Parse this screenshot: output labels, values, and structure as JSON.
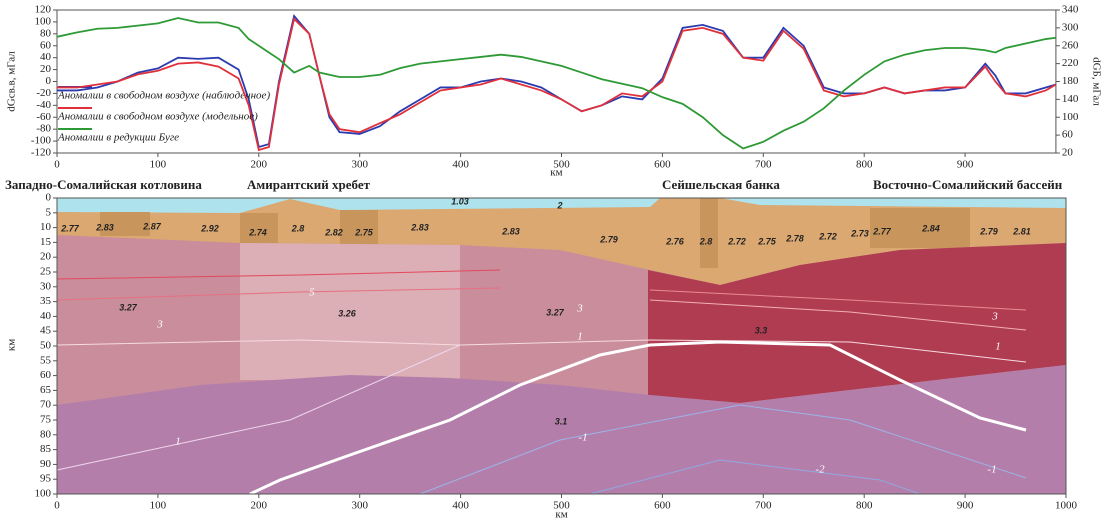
{
  "chart_data": [
    {
      "type": "line",
      "ylabel": "dGсв.в, мГал",
      "y2label": "dGБ, мГал",
      "xlabel": "км",
      "x": [
        0,
        20,
        40,
        60,
        80,
        100,
        120,
        140,
        160,
        180,
        190,
        200,
        210,
        220,
        235,
        250,
        260,
        270,
        280,
        300,
        320,
        340,
        360,
        380,
        400,
        420,
        440,
        460,
        480,
        500,
        520,
        540,
        560,
        580,
        600,
        620,
        640,
        660,
        680,
        700,
        720,
        740,
        760,
        780,
        800,
        820,
        840,
        860,
        880,
        900,
        920,
        930,
        940,
        960,
        980,
        990
      ],
      "series": [
        {
          "name": "Аномалии в свободном воздухе (наблюденное)",
          "color": "#2b3bb0",
          "values": [
            -15,
            -15,
            -10,
            0,
            15,
            22,
            40,
            38,
            40,
            20,
            -30,
            -110,
            -105,
            0,
            110,
            80,
            10,
            -60,
            -85,
            -88,
            -75,
            -50,
            -30,
            -10,
            -10,
            0,
            5,
            0,
            -10,
            -30,
            -50,
            -40,
            -25,
            -30,
            5,
            90,
            95,
            85,
            40,
            40,
            90,
            60,
            -10,
            -20,
            -20,
            -10,
            -20,
            -15,
            -15,
            -10,
            30,
            10,
            -20,
            -20,
            -10,
            -5
          ]
        },
        {
          "name": "Аномалии в свободном воздухе (модельное)",
          "color": "#e0303a",
          "values": [
            -10,
            -10,
            -5,
            0,
            12,
            18,
            30,
            32,
            25,
            5,
            -40,
            -115,
            -110,
            -5,
            105,
            80,
            10,
            -55,
            -80,
            -85,
            -70,
            -55,
            -35,
            -15,
            -10,
            -5,
            5,
            -5,
            -15,
            -30,
            -50,
            -40,
            -20,
            -25,
            0,
            85,
            90,
            80,
            40,
            35,
            85,
            55,
            -15,
            -25,
            -20,
            -10,
            -20,
            -15,
            -10,
            -10,
            25,
            0,
            -20,
            -25,
            -15,
            -5
          ]
        },
        {
          "name": "Аномалии в редукции Буге",
          "color": "#2e9a35",
          "axis": "y2",
          "values": [
            280,
            290,
            298,
            300,
            305,
            310,
            322,
            312,
            312,
            300,
            275,
            260,
            245,
            230,
            200,
            215,
            200,
            195,
            190,
            190,
            195,
            210,
            220,
            225,
            230,
            235,
            240,
            235,
            225,
            215,
            200,
            185,
            175,
            165,
            145,
            130,
            100,
            60,
            30,
            45,
            70,
            90,
            120,
            160,
            195,
            225,
            240,
            250,
            255,
            255,
            250,
            245,
            255,
            265,
            275,
            278
          ]
        }
      ],
      "xlim": [
        0,
        990
      ],
      "xticks": [
        0,
        100,
        200,
        300,
        400,
        500,
        600,
        700,
        800,
        900
      ],
      "ylim": [
        -120,
        120
      ],
      "yticks": [
        -120,
        -100,
        -80,
        -60,
        -40,
        -20,
        0,
        20,
        40,
        60,
        80,
        100,
        120
      ],
      "y2lim": [
        20,
        340
      ],
      "y2ticks": [
        20,
        60,
        100,
        140,
        180,
        220,
        260,
        300,
        340
      ]
    },
    {
      "type": "section",
      "regions": [
        "Западно-Сомалийская котловина",
        "Амирантский хребет",
        "Сейшельская банка",
        "Восточно-Сомалийский бассейн"
      ],
      "density_labels": [
        1.03,
        2,
        2.77,
        2.83,
        2.87,
        2.92,
        2.74,
        2.8,
        2.82,
        2.75,
        2.83,
        2.83,
        2.79,
        2.76,
        2.8,
        2.72,
        2.75,
        2.78,
        2.72,
        2.73,
        2.77,
        2.84,
        2.79,
        2.81,
        3.27,
        3.26,
        3.27,
        3.3,
        3.1
      ],
      "contour_labels": [
        3,
        5,
        3,
        1,
        3,
        1,
        1,
        -1,
        -2,
        -1
      ],
      "xlabel": "км",
      "ylabel": "км",
      "xlim": [
        0,
        1000
      ],
      "xticks": [
        0,
        100,
        200,
        300,
        400,
        500,
        600,
        700,
        800,
        900,
        1000
      ],
      "ylim": [
        0,
        100
      ],
      "yticks": [
        0,
        5,
        10,
        15,
        20,
        25,
        30,
        35,
        40,
        45,
        50,
        55,
        60,
        65,
        70,
        75,
        80,
        85,
        90,
        95,
        100
      ]
    }
  ]
}
